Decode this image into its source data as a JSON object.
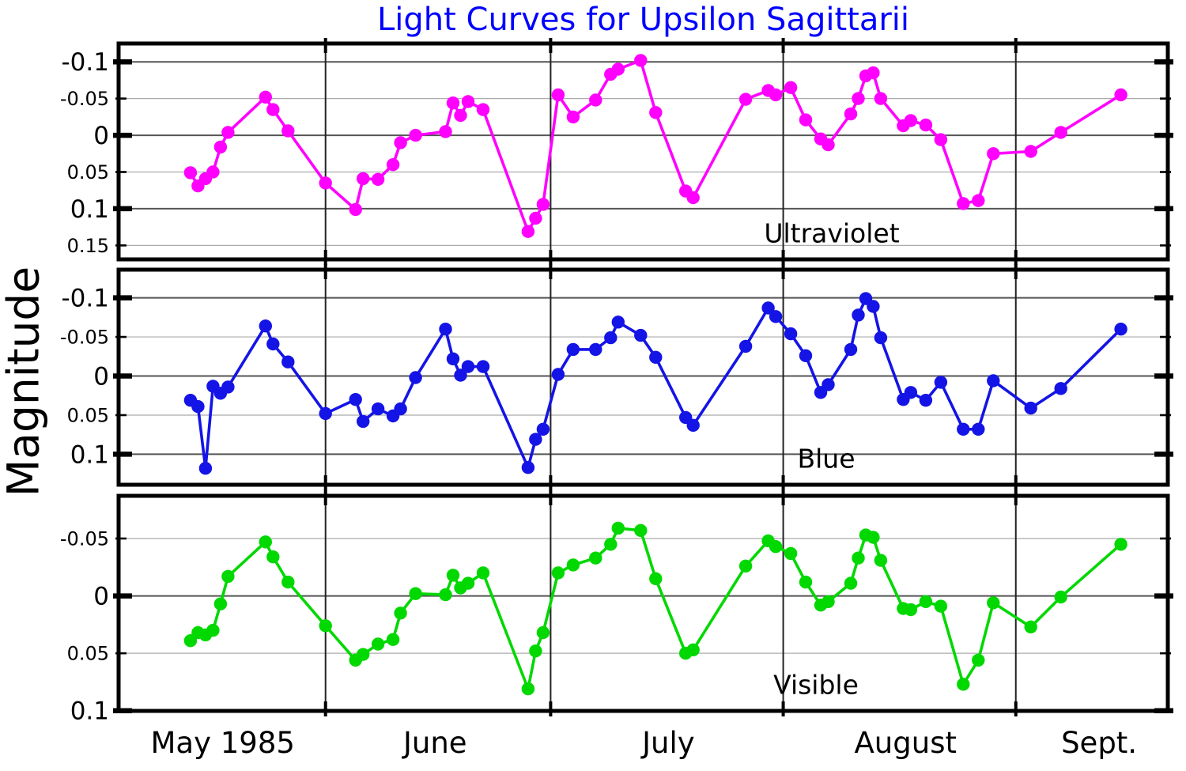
{
  "chart_data": {
    "type": "line",
    "title": "Light Curves for Upsilon Sagittarii",
    "title_color": "#0000FF",
    "ylabel": "Magnitude",
    "x_axis": {
      "unit": "days since 1985-05-01",
      "range_days": [
        3.42,
        143.26
      ],
      "month_gridline_days": [
        31,
        61,
        92,
        123
      ],
      "month_labels": [
        {
          "text": "May 1985",
          "day": 17.3
        },
        {
          "text": "June",
          "day": 45.6
        },
        {
          "text": "July",
          "day": 76.7
        },
        {
          "text": "August",
          "day": 108.3
        },
        {
          "text": "Sept.",
          "day": 134.1
        }
      ]
    },
    "grid": {
      "minor_color": "#ababab",
      "major_color": "#555555",
      "vline_color": "#222222"
    },
    "days": [
      13,
      14,
      15,
      16,
      17,
      18,
      23,
      24,
      26,
      31,
      35,
      36,
      38,
      40,
      41,
      43,
      47,
      48,
      49,
      50,
      52,
      58,
      59,
      60,
      62,
      64,
      67,
      69,
      70,
      73,
      75,
      79,
      80,
      87,
      90,
      91,
      93,
      95,
      97,
      98,
      101,
      102,
      103,
      104,
      105,
      108,
      109,
      111,
      113,
      116,
      118,
      120,
      125,
      129,
      137
    ],
    "panels": [
      {
        "name": "Ultraviolet",
        "color": "#FF00FF",
        "label_color": "#FF00FF",
        "ylim": [
          -0.125,
          0.169
        ],
        "yticks": [
          {
            "label": "-0.1",
            "value": -0.1,
            "major": true
          },
          {
            "label": "-0.05",
            "value": -0.05,
            "major": false
          },
          {
            "label": "0",
            "value": 0,
            "major": true
          },
          {
            "label": "0.05",
            "value": 0.05,
            "major": false
          },
          {
            "label": "0.1",
            "value": 0.1,
            "major": true
          },
          {
            "label": "0.15",
            "value": 0.15,
            "major": false
          }
        ],
        "mags": [
          0.051,
          0.069,
          0.059,
          0.05,
          0.016,
          -0.004,
          -0.052,
          -0.035,
          -0.006,
          0.065,
          0.101,
          0.059,
          0.06,
          0.04,
          0.01,
          0.0,
          -0.005,
          -0.044,
          -0.027,
          -0.046,
          -0.035,
          0.131,
          0.113,
          0.094,
          -0.055,
          -0.025,
          -0.048,
          -0.083,
          -0.09,
          -0.102,
          -0.031,
          0.076,
          0.085,
          -0.049,
          -0.061,
          -0.055,
          -0.065,
          -0.021,
          0.005,
          0.013,
          -0.029,
          -0.05,
          -0.081,
          -0.085,
          -0.05,
          -0.013,
          -0.02,
          -0.014,
          0.006,
          0.093,
          0.089,
          0.025,
          0.022,
          -0.004,
          -0.055
        ]
      },
      {
        "name": "Blue",
        "color": "#1414E6",
        "label_color": "#0000E0",
        "ylim": [
          -0.136,
          0.139
        ],
        "yticks": [
          {
            "label": "-0.1",
            "value": -0.1,
            "major": true
          },
          {
            "label": "-0.05",
            "value": -0.05,
            "major": false
          },
          {
            "label": "0",
            "value": 0,
            "major": true
          },
          {
            "label": "0.05",
            "value": 0.05,
            "major": false
          },
          {
            "label": "0.1",
            "value": 0.1,
            "major": true
          }
        ],
        "mags": [
          0.031,
          0.039,
          0.118,
          0.013,
          0.022,
          0.014,
          -0.064,
          -0.041,
          -0.018,
          0.048,
          0.03,
          0.058,
          0.042,
          0.051,
          0.042,
          0.002,
          -0.06,
          -0.022,
          -0.001,
          -0.012,
          -0.012,
          0.117,
          0.081,
          0.068,
          -0.002,
          -0.034,
          -0.034,
          -0.049,
          -0.069,
          -0.052,
          -0.024,
          0.053,
          0.063,
          -0.038,
          -0.087,
          -0.076,
          -0.054,
          -0.026,
          0.021,
          0.011,
          -0.034,
          -0.078,
          -0.099,
          -0.089,
          -0.049,
          0.03,
          0.021,
          0.031,
          0.008,
          0.068,
          0.068,
          0.006,
          0.041,
          0.016,
          -0.06
        ]
      },
      {
        "name": "Visible",
        "color": "#00D800",
        "label_color": "#00DC00",
        "ylim": [
          -0.0872,
          0.1002
        ],
        "yticks": [
          {
            "label": "-0.05",
            "value": -0.05,
            "major": false
          },
          {
            "label": "0",
            "value": 0,
            "major": true
          },
          {
            "label": "0.05",
            "value": 0.05,
            "major": false
          },
          {
            "label": "0.1",
            "value": 0.1,
            "major": true
          }
        ],
        "mags": [
          0.039,
          0.032,
          0.034,
          0.03,
          0.007,
          -0.017,
          -0.047,
          -0.034,
          -0.012,
          0.026,
          0.056,
          0.051,
          0.042,
          0.038,
          0.015,
          -0.002,
          -0.001,
          -0.018,
          -0.007,
          -0.011,
          -0.02,
          0.081,
          0.048,
          0.032,
          -0.02,
          -0.027,
          -0.033,
          -0.045,
          -0.059,
          -0.057,
          -0.015,
          0.05,
          0.047,
          -0.026,
          -0.048,
          -0.043,
          -0.037,
          -0.012,
          0.008,
          0.005,
          -0.011,
          -0.033,
          -0.053,
          -0.051,
          -0.031,
          0.011,
          0.012,
          0.005,
          0.009,
          0.077,
          0.056,
          0.006,
          0.027,
          0.001,
          -0.045
        ]
      }
    ]
  }
}
